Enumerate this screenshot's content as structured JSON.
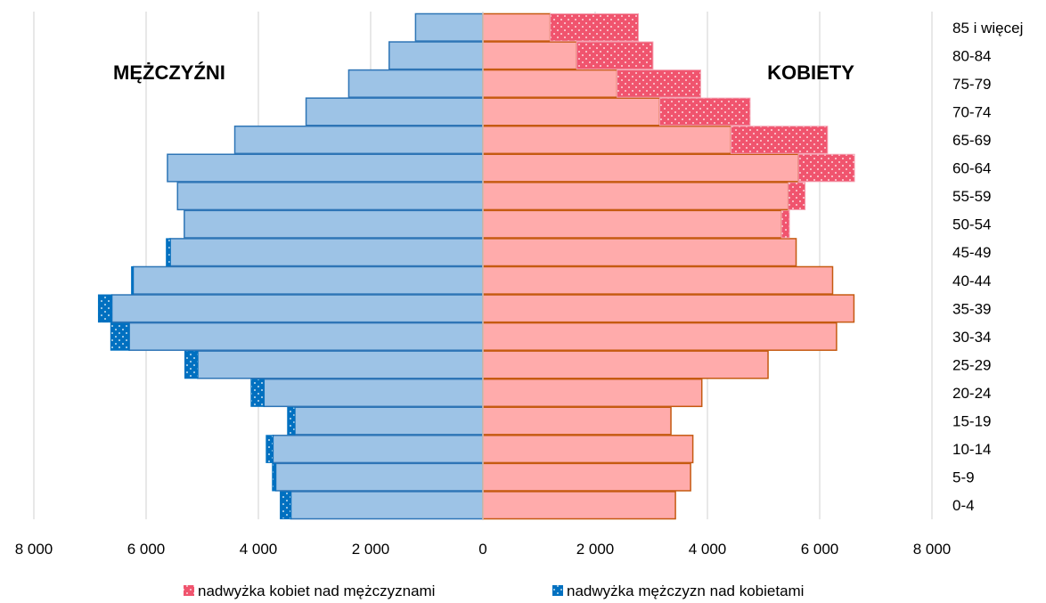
{
  "chart_data": {
    "type": "bar",
    "orientation": "horizontal-population-pyramid",
    "categories": [
      "0-4",
      "5-9",
      "10-14",
      "15-19",
      "20-24",
      "25-29",
      "30-34",
      "35-39",
      "40-44",
      "45-49",
      "50-54",
      "55-59",
      "60-64",
      "65-69",
      "70-74",
      "75-79",
      "80-84",
      "85 i więcej"
    ],
    "left_label": "MĘŻCZYŹNI",
    "right_label": "KOBIETY",
    "men": [
      3420,
      3690,
      3740,
      3350,
      3900,
      5080,
      6300,
      6610,
      6230,
      5570,
      5320,
      5440,
      5620,
      4420,
      3150,
      2390,
      1670,
      1200
    ],
    "women": [
      3430,
      3700,
      3740,
      3350,
      3900,
      5080,
      6300,
      6610,
      6230,
      5580,
      5320,
      5440,
      5620,
      4420,
      3150,
      2390,
      1670,
      1200
    ],
    "excess_women": [
      0,
      0,
      0,
      0,
      0,
      0,
      0,
      0,
      0,
      0,
      140,
      300,
      1000,
      1720,
      1610,
      1490,
      1360,
      1570
    ],
    "excess_men": [
      190,
      60,
      120,
      130,
      230,
      230,
      330,
      240,
      30,
      70,
      0,
      0,
      0,
      0,
      0,
      0,
      0,
      0
    ],
    "x_ticks": [
      "8 000",
      "6 000",
      "4 000",
      "2 000",
      "0",
      "2 000",
      "4 000",
      "6 000",
      "8 000"
    ],
    "xlim": [
      -8000,
      8000
    ],
    "grid": "vertical",
    "legend_position": "bottom",
    "legend": [
      {
        "key": "excess_women",
        "label": "nadwyżka kobiet nad mężczyznami"
      },
      {
        "key": "excess_men",
        "label": "nadwyżka mężczyzn nad kobietami"
      }
    ],
    "colors": {
      "men_fill": "#9dc3e6",
      "men_border": "#2e75b6",
      "women_fill": "#ffabab",
      "women_border": "#c55a11",
      "excess_women": "#f0546e",
      "excess_men": "#0070c0",
      "grid": "#d9d9d9"
    }
  }
}
